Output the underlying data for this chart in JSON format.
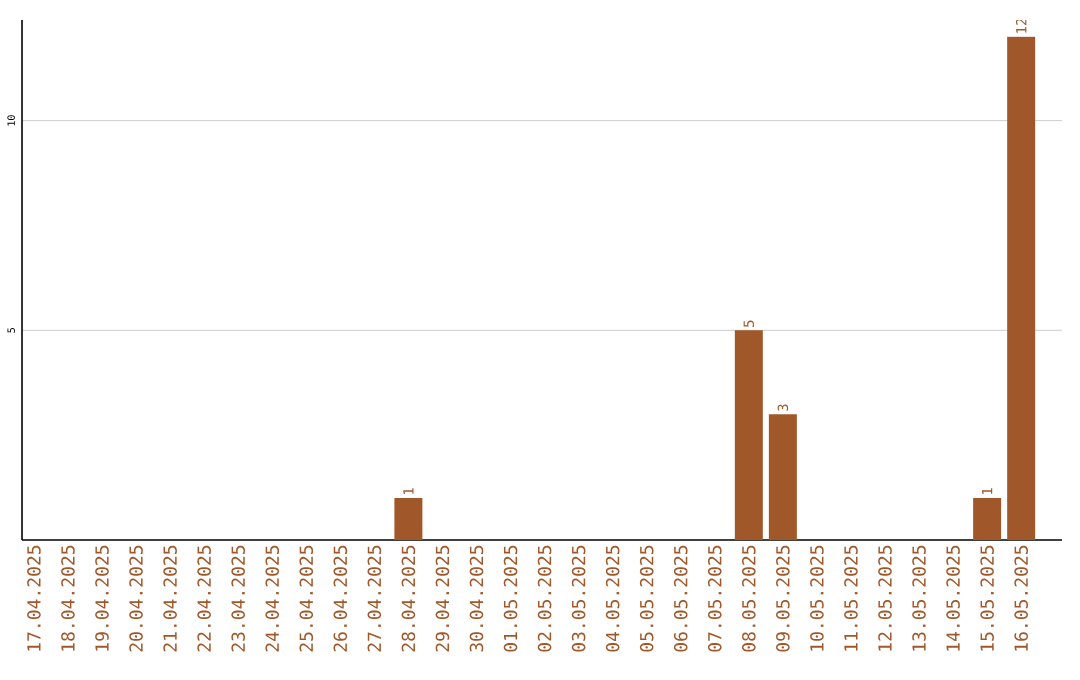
{
  "chart_data": {
    "type": "bar",
    "categories": [
      "17.04.2025",
      "18.04.2025",
      "19.04.2025",
      "20.04.2025",
      "21.04.2025",
      "22.04.2025",
      "23.04.2025",
      "24.04.2025",
      "25.04.2025",
      "26.04.2025",
      "27.04.2025",
      "28.04.2025",
      "29.04.2025",
      "30.04.2025",
      "01.05.2025",
      "02.05.2025",
      "03.05.2025",
      "04.05.2025",
      "05.05.2025",
      "06.05.2025",
      "07.05.2025",
      "08.05.2025",
      "09.05.2025",
      "10.05.2025",
      "11.05.2025",
      "12.05.2025",
      "13.05.2025",
      "14.05.2025",
      "15.05.2025",
      "16.05.2025"
    ],
    "values": [
      0,
      0,
      0,
      0,
      0,
      0,
      0,
      0,
      0,
      0,
      0,
      1,
      0,
      0,
      0,
      0,
      0,
      0,
      0,
      0,
      0,
      5,
      3,
      0,
      0,
      0,
      0,
      0,
      1,
      12
    ],
    "value_labels": [
      null,
      null,
      null,
      null,
      null,
      null,
      null,
      null,
      null,
      null,
      null,
      "1",
      null,
      null,
      null,
      null,
      null,
      null,
      null,
      null,
      null,
      "5",
      "3",
      null,
      null,
      null,
      null,
      null,
      "1",
      "12"
    ],
    "color": "#a0582a",
    "ylim": [
      0,
      12.4
    ],
    "yticks": [
      5,
      10
    ],
    "grid": "y"
  }
}
